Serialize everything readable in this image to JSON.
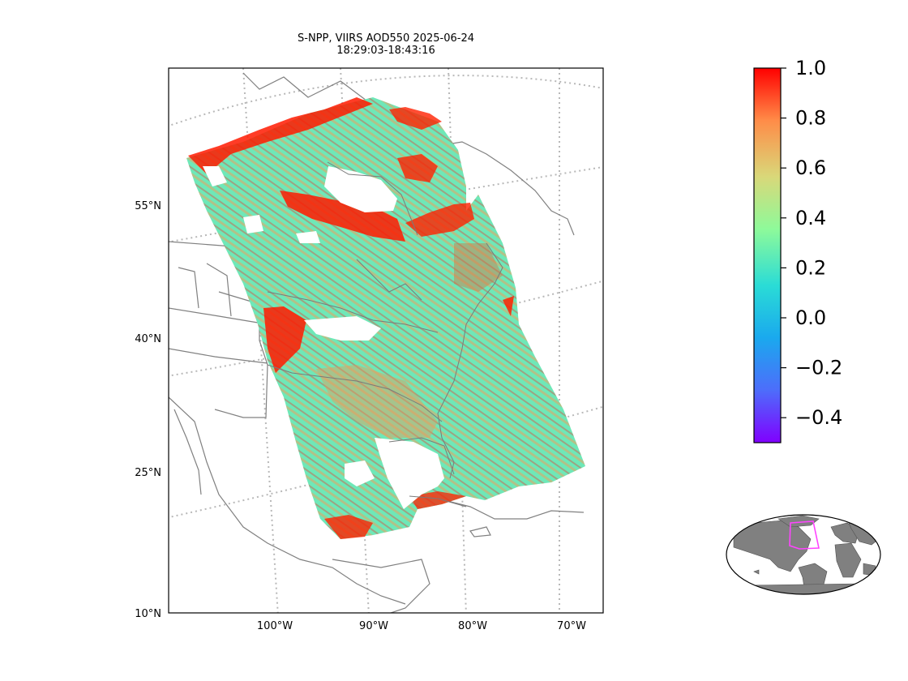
{
  "title": {
    "line1": "S-NPP, VIIRS AOD550 2025-06-24",
    "line2": "18:29:03-18:43:16"
  },
  "map": {
    "lat_labels": [
      "55°N",
      "40°N",
      "25°N",
      "10°N"
    ],
    "lon_labels": [
      "100°W",
      "90°W",
      "80°W",
      "70°W"
    ],
    "gridline_style": "dotted gray",
    "coastline_color": "#808080"
  },
  "colorbar": {
    "colormap": "rainbow",
    "min": -0.5,
    "max": 1.0,
    "ticks": [
      1.0,
      0.8,
      0.6,
      0.4,
      0.2,
      0.0,
      -0.2,
      -0.4
    ],
    "tick_labels": [
      "1.0",
      "0.8",
      "0.6",
      "0.4",
      "0.2",
      "0.0",
      "−0.2",
      "−0.4"
    ],
    "colors": [
      "#ff0000",
      "#ff8c48",
      "#d9d879",
      "#8efa9a",
      "#2adcd6",
      "#00b8ee",
      "#4d6dfb",
      "#8000ff"
    ]
  },
  "inset": {
    "land_color": "#808080",
    "box_color": "#ff44ff"
  }
}
